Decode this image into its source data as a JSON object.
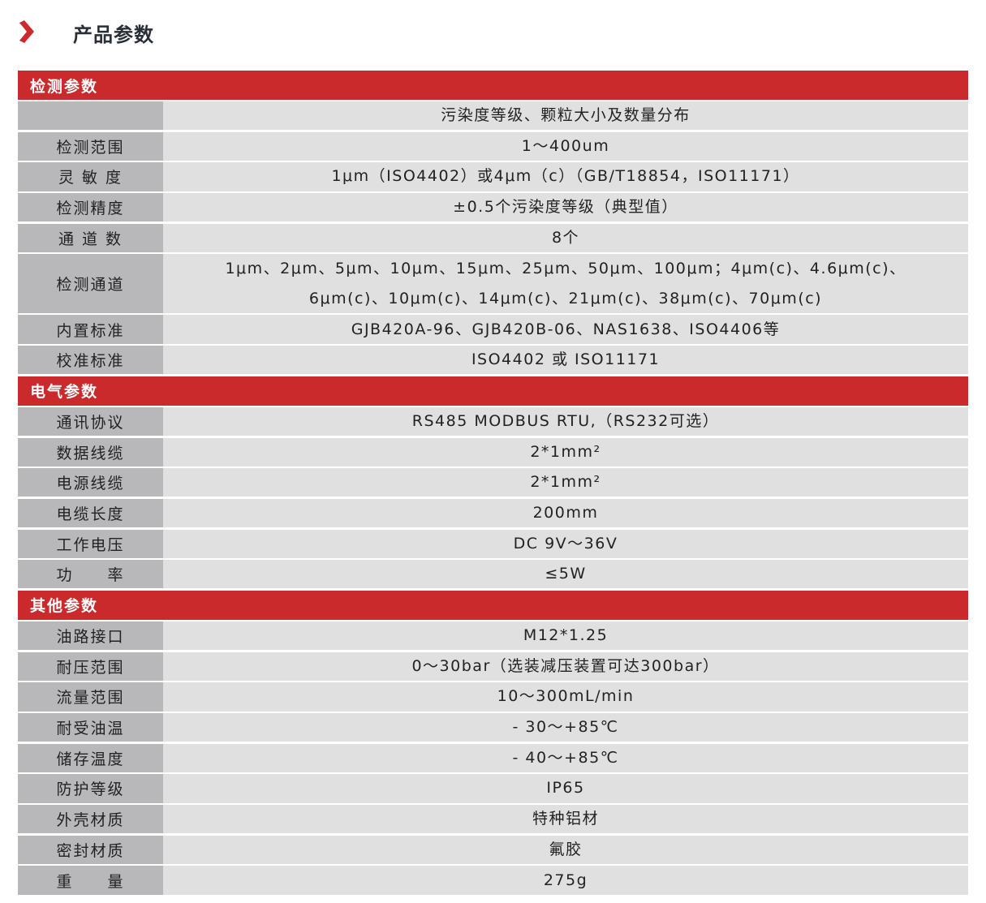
{
  "title": "产品参数",
  "accent": "#cb2a2c",
  "sections": [
    {
      "name": "检测参数",
      "rows": [
        {
          "label": "",
          "value": [
            "污染度等级、颗粒大小及数量分布"
          ]
        },
        {
          "label": "检测范围",
          "value": [
            "1～400um"
          ]
        },
        {
          "label": "灵 敏 度",
          "value": [
            "1μm（ISO4402）或4μm（c）（GB/T18854，ISO11171）"
          ]
        },
        {
          "label": "检测精度",
          "value": [
            "±0.5个污染度等级（典型值）"
          ]
        },
        {
          "label": "通 道 数",
          "value": [
            "8个"
          ]
        },
        {
          "label": "检测通道",
          "value": [
            "1μm、2μm、5μm、10μm、15μm、25μm、50μm、100μm；4μm(c)、4.6μm(c)、",
            "6μm(c)、10μm(c)、14μm(c)、21μm(c)、38μm(c)、70μm(c)"
          ]
        },
        {
          "label": "内置标准",
          "value": [
            "GJB420A-96、GJB420B-06、NAS1638、ISO4406等"
          ]
        },
        {
          "label": "校准标准",
          "value": [
            "ISO4402 或 ISO11171"
          ]
        }
      ]
    },
    {
      "name": "电气参数",
      "rows": [
        {
          "label": "通讯协议",
          "value": [
            "RS485 MODBUS RTU,（RS232可选）"
          ]
        },
        {
          "label": "数据线缆",
          "value": [
            "2*1mm²"
          ]
        },
        {
          "label": "电源线缆",
          "value": [
            "2*1mm²"
          ]
        },
        {
          "label": "电缆长度",
          "value": [
            "200mm"
          ]
        },
        {
          "label": "工作电压",
          "value": [
            "DC 9V～36V"
          ]
        },
        {
          "label": "功　　率",
          "value": [
            "≤5W"
          ]
        }
      ]
    },
    {
      "name": "其他参数",
      "rows": [
        {
          "label": "油路接口",
          "value": [
            "M12*1.25"
          ]
        },
        {
          "label": "耐压范围",
          "value": [
            "0～30bar（选装减压装置可达300bar）"
          ]
        },
        {
          "label": "流量范围",
          "value": [
            "10～300mL/min"
          ]
        },
        {
          "label": "耐受油温",
          "value": [
            "- 30～+85℃"
          ]
        },
        {
          "label": "储存温度",
          "value": [
            "- 40～+85℃"
          ]
        },
        {
          "label": "防护等级",
          "value": [
            "IP65"
          ]
        },
        {
          "label": "外壳材质",
          "value": [
            "特种铝材"
          ]
        },
        {
          "label": "密封材质",
          "value": [
            "氟胶"
          ]
        },
        {
          "label": "重　　量",
          "value": [
            "275g"
          ]
        }
      ]
    }
  ]
}
